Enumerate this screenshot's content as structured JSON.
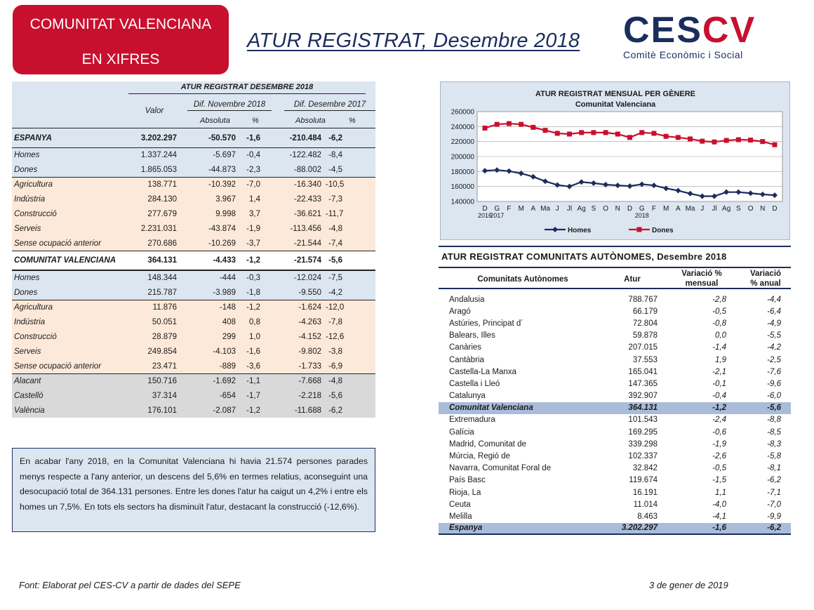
{
  "badge": {
    "line1": "COMUNITAT VALENCIANA",
    "line2": "EN XIFRES"
  },
  "title": "ATUR REGISTRAT, Desembre 2018",
  "logo": {
    "word_main": "CES",
    "word_accent": "CV",
    "subtitle": "Comitè Econòmic i Social"
  },
  "left_table": {
    "title": "ATUR REGISTRAT DESEMBRE 2018",
    "col_valor": "Valor",
    "group1": "Dif. Novembre 2018",
    "group2": "Dif. Desembre 2017",
    "sub_abs": "Absoluta",
    "sub_pct": "%",
    "rows": [
      {
        "label": "ESPANYA",
        "valor": "3.202.297",
        "abs1": "-50.570",
        "pct1": "-1,6",
        "abs2": "-210.484",
        "pct2": "-6,2"
      },
      {
        "label": "Homes",
        "valor": "1.337.244",
        "abs1": "-5.697",
        "pct1": "-0,4",
        "abs2": "-122.482",
        "pct2": "-8,4"
      },
      {
        "label": "Dones",
        "valor": "1.865.053",
        "abs1": "-44.873",
        "pct1": "-2,3",
        "abs2": "-88.002",
        "pct2": "-4,5"
      },
      {
        "label": "Agricultura",
        "valor": "138.771",
        "abs1": "-10.392",
        "pct1": "-7,0",
        "abs2": "-16.340",
        "pct2": "-10,5"
      },
      {
        "label": "Indústria",
        "valor": "284.130",
        "abs1": "3.967",
        "pct1": "1,4",
        "abs2": "-22.433",
        "pct2": "-7,3"
      },
      {
        "label": "Construcció",
        "valor": "277.679",
        "abs1": "9.998",
        "pct1": "3,7",
        "abs2": "-36.621",
        "pct2": "-11,7"
      },
      {
        "label": "Serveis",
        "valor": "2.231.031",
        "abs1": "-43.874",
        "pct1": "-1,9",
        "abs2": "-113.456",
        "pct2": "-4,8"
      },
      {
        "label": "Sense ocupació anterior",
        "valor": "270.686",
        "abs1": "-10.269",
        "pct1": "-3,7",
        "abs2": "-21.544",
        "pct2": "-7,4"
      },
      {
        "label": "COMUNITAT VALENCIANA",
        "valor": "364.131",
        "abs1": "-4.433",
        "pct1": "-1,2",
        "abs2": "-21.574",
        "pct2": "-5,6"
      },
      {
        "label": "Homes",
        "valor": "148.344",
        "abs1": "-444",
        "pct1": "-0,3",
        "abs2": "-12.024",
        "pct2": "-7,5"
      },
      {
        "label": "Dones",
        "valor": "215.787",
        "abs1": "-3.989",
        "pct1": "-1,8",
        "abs2": "-9.550",
        "pct2": "-4,2"
      },
      {
        "label": "Agricultura",
        "valor": "11.876",
        "abs1": "-148",
        "pct1": "-1,2",
        "abs2": "-1.624",
        "pct2": "-12,0"
      },
      {
        "label": "Indústria",
        "valor": "50.051",
        "abs1": "408",
        "pct1": "0,8",
        "abs2": "-4.263",
        "pct2": "-7,8"
      },
      {
        "label": "Construcció",
        "valor": "28.879",
        "abs1": "299",
        "pct1": "1,0",
        "abs2": "-4.152",
        "pct2": "-12,6"
      },
      {
        "label": "Serveis",
        "valor": "249.854",
        "abs1": "-4.103",
        "pct1": "-1,6",
        "abs2": "-9.802",
        "pct2": "-3,8"
      },
      {
        "label": "Sense ocupació anterior",
        "valor": "23.471",
        "abs1": "-889",
        "pct1": "-3,6",
        "abs2": "-1.733",
        "pct2": "-6,9"
      },
      {
        "label": "Alacant",
        "valor": "150.716",
        "abs1": "-1.692",
        "pct1": "-1,1",
        "abs2": "-7.668",
        "pct2": "-4,8"
      },
      {
        "label": "Castelló",
        "valor": "37.314",
        "abs1": "-654",
        "pct1": "-1,7",
        "abs2": "-2.218",
        "pct2": "-5,6"
      },
      {
        "label": "València",
        "valor": "176.101",
        "abs1": "-2.087",
        "pct1": "-1,2",
        "abs2": "-11.688",
        "pct2": "-6,2"
      }
    ]
  },
  "summary_text": "En acabar l'any 2018, en la Comunitat Valenciana hi havia 21.574 persones parades menys respecte a l'any anterior, un descens del 5,6% en termes relatius, aconseguint una desocupació total de 364.131 persones. Entre les dones l'atur ha caigut un 4,2% i entre els homes un 7,5%. En tots els sectors ha disminuït l'atur, destacant la construcció (-12,6%).",
  "chart_data": {
    "type": "line",
    "title": "ATUR REGISTRAT MENSUAL PER GÈNERE",
    "subtitle": "Comunitat Valenciana",
    "categories": [
      "D",
      "G",
      "F",
      "M",
      "A",
      "Ma",
      "J",
      "Jl",
      "Ag",
      "S",
      "O",
      "N",
      "D",
      "G",
      "F",
      "M",
      "A",
      "Ma",
      "J",
      "Jl",
      "Ag",
      "S",
      "O",
      "N",
      "D"
    ],
    "year_labels": [
      {
        "index": 0,
        "text": "2016"
      },
      {
        "index": 1,
        "text": "2017"
      },
      {
        "index": 13,
        "text": "2018"
      }
    ],
    "ylim": [
      140000,
      260000
    ],
    "yticks": [
      "140000",
      "160000",
      "180000",
      "200000",
      "220000",
      "240000",
      "260000"
    ],
    "grid": true,
    "legend_position": "bottom",
    "series": [
      {
        "name": "Homes",
        "color": "#1b2d5e",
        "marker": "diamond",
        "values": [
          181000,
          182000,
          180500,
          177500,
          173000,
          167000,
          162000,
          160000,
          166000,
          164500,
          162500,
          161500,
          160500,
          163000,
          161500,
          157500,
          154500,
          150500,
          147000,
          147000,
          152500,
          152500,
          151000,
          149500,
          148300
        ]
      },
      {
        "name": "Dones",
        "color": "#c8102e",
        "marker": "square",
        "values": [
          238000,
          243000,
          244000,
          243000,
          239000,
          235000,
          231000,
          230000,
          232000,
          232000,
          232000,
          230000,
          225500,
          232000,
          231000,
          227000,
          225500,
          223500,
          220500,
          219500,
          221500,
          222500,
          222000,
          220000,
          215800
        ]
      }
    ]
  },
  "right_table": {
    "title": "ATUR REGISTRAT COMUNITATS AUTÒNOMES, Desembre 2018",
    "headers": {
      "name": "Comunitats Autònomes",
      "atur": "Atur",
      "mensual_l1": "Variació %",
      "mensual_l2": "mensual",
      "anual_l1": "Variació",
      "anual_l2": "% anual"
    },
    "rows": [
      {
        "name": "Andalusia",
        "atur": "788.767",
        "mensual": "-2,8",
        "anual": "-4,4"
      },
      {
        "name": "Aragó",
        "atur": "66.179",
        "mensual": "-0,5",
        "anual": "-6,4"
      },
      {
        "name": "Astúries, Principat d´",
        "atur": "72.804",
        "mensual": "-0,8",
        "anual": "-4,9"
      },
      {
        "name": "Balears, Illes",
        "atur": "59.878",
        "mensual": "0,0",
        "anual": "-5,5"
      },
      {
        "name": "Canàries",
        "atur": "207.015",
        "mensual": "-1,4",
        "anual": "-4,2"
      },
      {
        "name": "Cantàbria",
        "atur": "37.553",
        "mensual": "1,9",
        "anual": "-2,5"
      },
      {
        "name": "Castella-La Manxa",
        "atur": "165.041",
        "mensual": "-2,1",
        "anual": "-7,6"
      },
      {
        "name": "Castella i Lleó",
        "atur": "147.365",
        "mensual": "-0,1",
        "anual": "-9,6"
      },
      {
        "name": "Catalunya",
        "atur": "392.907",
        "mensual": "-0,4",
        "anual": "-6,0"
      },
      {
        "name": "Comunitat Valenciana",
        "atur": "364.131",
        "mensual": "-1,2",
        "anual": "-5,6"
      },
      {
        "name": "Extremadura",
        "atur": "101.543",
        "mensual": "-2,4",
        "anual": "-8,8"
      },
      {
        "name": "Galícia",
        "atur": "169.295",
        "mensual": "-0,6",
        "anual": "-8,5"
      },
      {
        "name": "Madrid, Comunitat de",
        "atur": "339.298",
        "mensual": "-1,9",
        "anual": "-8,3"
      },
      {
        "name": "Múrcia, Regió de",
        "atur": "102.337",
        "mensual": "-2,6",
        "anual": "-5,8"
      },
      {
        "name": "Navarra, Comunitat Foral de",
        "atur": "32.842",
        "mensual": "-0,5",
        "anual": "-8,1"
      },
      {
        "name": "País Basc",
        "atur": "119.674",
        "mensual": "-1,5",
        "anual": "-6,2"
      },
      {
        "name": "Rioja, La",
        "atur": "16.191",
        "mensual": "1,1",
        "anual": "-7,1"
      },
      {
        "name": "Ceuta",
        "atur": "11.014",
        "mensual": "-4,0",
        "anual": "-7,0"
      },
      {
        "name": "Melilla",
        "atur": "8.463",
        "mensual": "-4,1",
        "anual": "-9,9"
      },
      {
        "name": "Espanya",
        "atur": "3.202.297",
        "mensual": "-1,6",
        "anual": "-6,2"
      }
    ]
  },
  "footer": {
    "source": "Font: Elaborat pel CES-CV a partir de dades del SEPE",
    "date": "3 de gener de 2019"
  }
}
